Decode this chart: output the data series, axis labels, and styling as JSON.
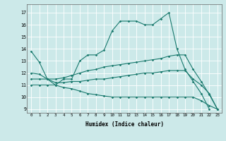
{
  "xlabel": "Humidex (Indice chaleur)",
  "bg_color": "#cce9e9",
  "grid_color": "#ffffff",
  "line_color": "#1a7a6e",
  "xlim": [
    -0.5,
    23.5
  ],
  "ylim": [
    8.7,
    17.7
  ],
  "yticks": [
    9,
    10,
    11,
    12,
    13,
    14,
    15,
    16,
    17
  ],
  "xticks": [
    0,
    1,
    2,
    3,
    4,
    5,
    6,
    7,
    8,
    9,
    10,
    11,
    12,
    13,
    14,
    15,
    16,
    17,
    18,
    19,
    20,
    21,
    22,
    23
  ],
  "curves": [
    {
      "x": [
        0,
        1,
        2,
        3,
        4,
        5,
        6,
        7,
        8,
        9,
        10,
        11,
        12,
        13,
        14,
        15,
        16,
        17,
        18,
        19,
        20,
        21,
        22,
        23
      ],
      "y": [
        13.8,
        12.9,
        11.5,
        11.0,
        11.5,
        11.5,
        13.0,
        13.5,
        13.5,
        13.9,
        15.5,
        16.3,
        16.3,
        16.3,
        16.0,
        16.0,
        16.5,
        17.0,
        14.0,
        12.3,
        11.3,
        10.3,
        9.0,
        null
      ]
    },
    {
      "x": [
        0,
        1,
        2,
        3,
        4,
        5,
        6,
        7,
        8,
        9,
        10,
        11,
        12,
        13,
        14,
        15,
        16,
        17,
        18,
        19,
        20,
        21,
        22,
        23
      ],
      "y": [
        12.0,
        11.9,
        11.5,
        11.5,
        11.6,
        11.8,
        12.0,
        12.2,
        12.3,
        12.5,
        12.6,
        12.7,
        12.8,
        12.9,
        13.0,
        13.1,
        13.2,
        13.4,
        13.5,
        13.5,
        12.3,
        11.3,
        10.2,
        9.0
      ]
    },
    {
      "x": [
        0,
        1,
        2,
        3,
        4,
        5,
        6,
        7,
        8,
        9,
        10,
        11,
        12,
        13,
        14,
        15,
        16,
        17,
        18,
        19,
        20,
        21,
        22,
        23
      ],
      "y": [
        11.5,
        11.5,
        11.5,
        11.2,
        11.2,
        11.3,
        11.3,
        11.4,
        11.5,
        11.5,
        11.6,
        11.7,
        11.8,
        11.9,
        12.0,
        12.0,
        12.1,
        12.2,
        12.2,
        12.2,
        11.5,
        11.0,
        10.3,
        9.0
      ]
    },
    {
      "x": [
        0,
        1,
        2,
        3,
        4,
        5,
        6,
        7,
        8,
        9,
        10,
        11,
        12,
        13,
        14,
        15,
        16,
        17,
        18,
        19,
        20,
        21,
        22,
        23
      ],
      "y": [
        11.0,
        11.0,
        11.0,
        11.0,
        10.8,
        10.7,
        10.5,
        10.3,
        10.2,
        10.1,
        10.0,
        10.0,
        10.0,
        10.0,
        10.0,
        10.0,
        10.0,
        10.0,
        10.0,
        10.0,
        10.0,
        9.7,
        9.3,
        9.0
      ]
    }
  ]
}
